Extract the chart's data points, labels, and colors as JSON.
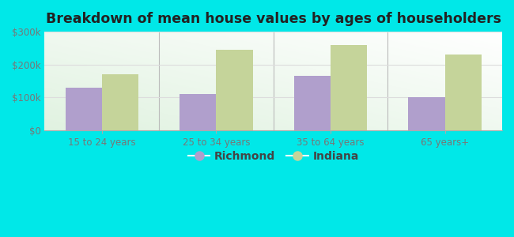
{
  "title": "Breakdown of mean house values by ages of householders",
  "categories": [
    "15 to 24 years",
    "25 to 34 years",
    "35 to 64 years",
    "65 years+"
  ],
  "richmond_values": [
    130000,
    110000,
    165000,
    100000
  ],
  "indiana_values": [
    170000,
    245000,
    260000,
    230000
  ],
  "richmond_color": "#b09fcc",
  "indiana_color": "#c5d49a",
  "background_color": "#00e8e8",
  "ylim": [
    0,
    300000
  ],
  "yticks": [
    0,
    100000,
    200000,
    300000
  ],
  "ytick_labels": [
    "$0",
    "$100k",
    "$200k",
    "$300k"
  ],
  "legend_labels": [
    "Richmond",
    "Indiana"
  ],
  "bar_width": 0.32,
  "title_fontsize": 12.5,
  "tick_fontsize": 8.5,
  "legend_fontsize": 10,
  "separator_color": "#bbbbbb",
  "grid_color": "#dddddd",
  "tick_label_color": "#777777"
}
